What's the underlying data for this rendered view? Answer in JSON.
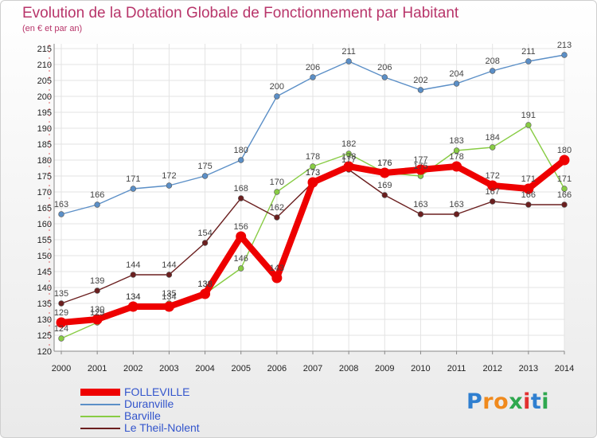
{
  "header": {
    "title": "Evolution de la Dotation Globale de Fonctionnement par Habitant",
    "subtitle": "(en € et par an)"
  },
  "logo": {
    "letters": [
      "P",
      "r",
      "o",
      "x",
      "i",
      "t",
      "i"
    ],
    "colors": [
      "#2f7fd0",
      "#f08a1d",
      "#f08a1d",
      "#2fa84f",
      "#e23030",
      "#2f7fd0",
      "#2fa84f"
    ]
  },
  "chart_data": {
    "type": "line",
    "categories": [
      "2000",
      "2001",
      "2002",
      "2003",
      "2004",
      "2005",
      "2006",
      "2007",
      "2008",
      "2009",
      "2010",
      "2011",
      "2012",
      "2013",
      "2014"
    ],
    "ylim": [
      120,
      215
    ],
    "y_ticks": [
      120,
      125,
      130,
      135,
      140,
      145,
      150,
      155,
      160,
      165,
      170,
      175,
      180,
      185,
      190,
      195,
      200,
      205,
      210,
      215
    ],
    "grid": true,
    "legend_position": "bottom-left",
    "series": [
      {
        "name": "Duranville",
        "color": "#5b8fc7",
        "values": [
          163,
          166,
          171,
          172,
          175,
          180,
          200,
          206,
          211,
          206,
          202,
          204,
          208,
          211,
          213
        ]
      },
      {
        "name": "Barville",
        "color": "#88cc44",
        "values": [
          124,
          129,
          134,
          135,
          138,
          146,
          170,
          178,
          182,
          176,
          175,
          183,
          184,
          191,
          171
        ]
      },
      {
        "name": "Le Theil-Nolent",
        "color": "#6b1f1f",
        "values": [
          135,
          139,
          144,
          144,
          154,
          168,
          162,
          173,
          177,
          169,
          163,
          163,
          167,
          166,
          166
        ]
      },
      {
        "name": "FOLLEVILLE",
        "color": "#ee0000",
        "values": [
          129,
          130,
          134,
          134,
          138,
          156,
          143,
          173,
          178,
          176,
          177,
          178,
          172,
          171,
          180
        ]
      }
    ]
  }
}
